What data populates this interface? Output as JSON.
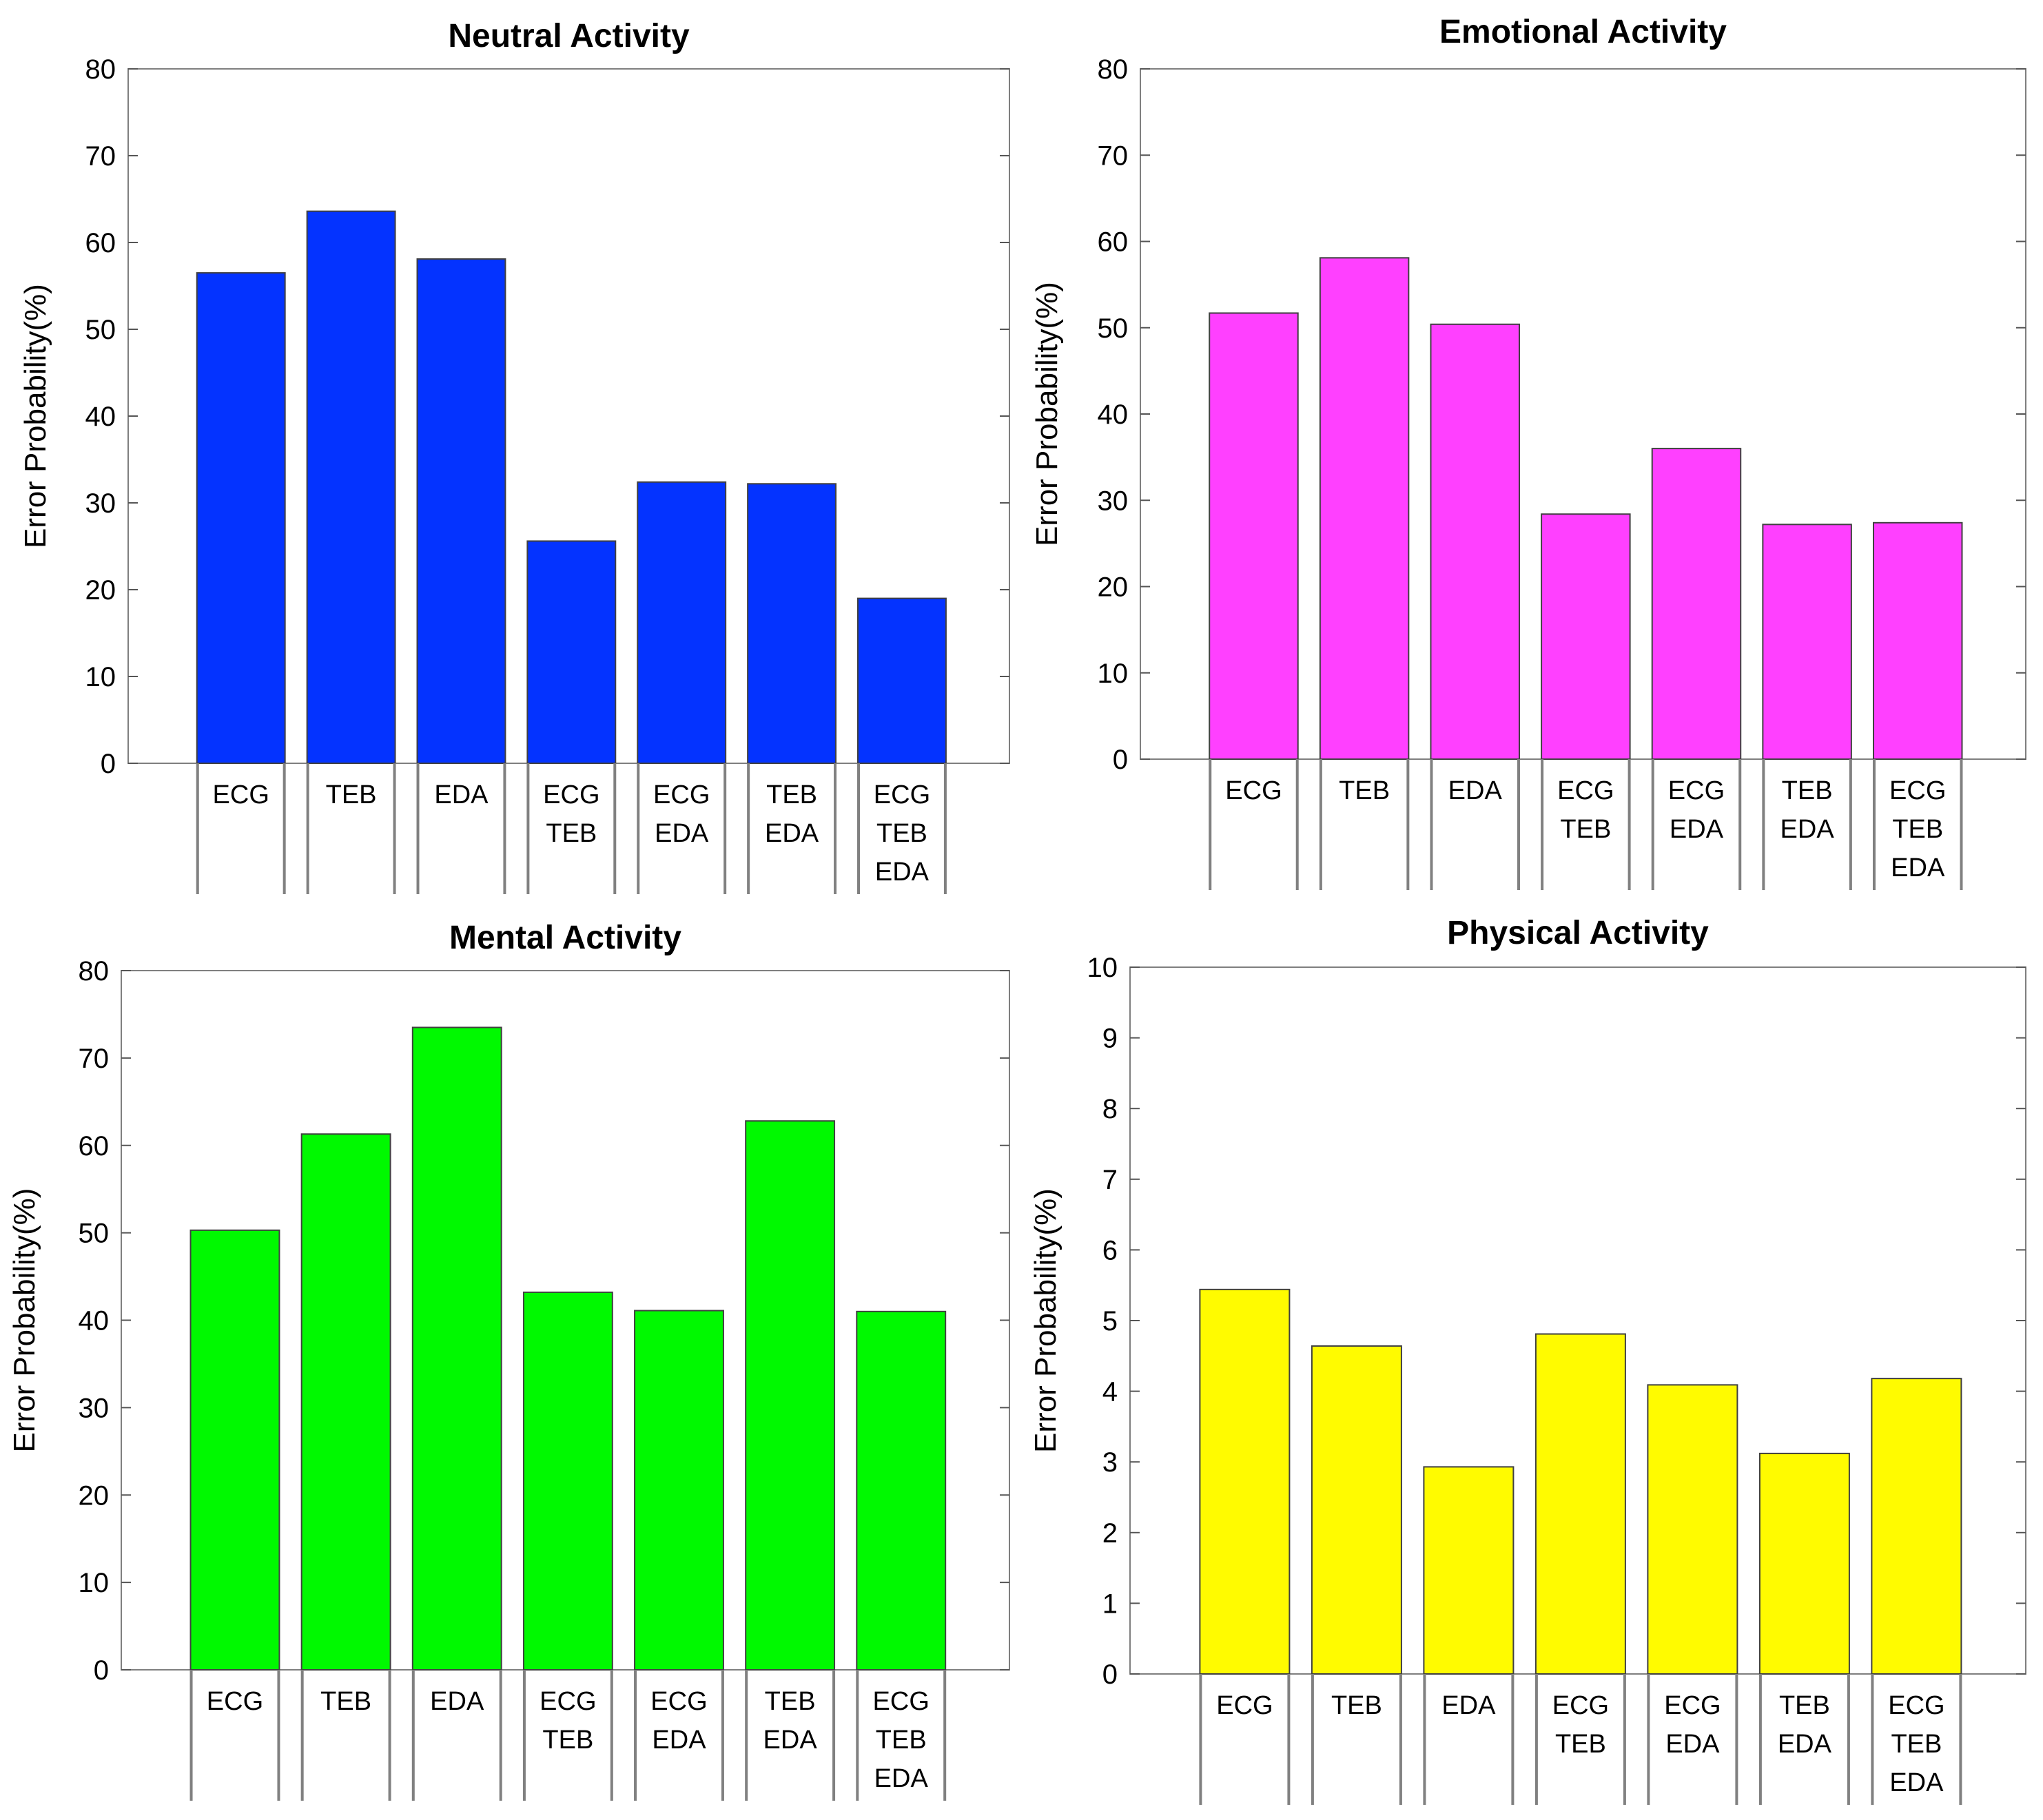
{
  "chart_data": [
    {
      "type": "bar",
      "title": "Neutral Activity",
      "ylabel": "Error Probability(%)",
      "xlabel": "",
      "ylim": [
        0,
        80
      ],
      "yticks": [
        0,
        10,
        20,
        30,
        40,
        50,
        60,
        70,
        80
      ],
      "categories": [
        [
          "ECG"
        ],
        [
          "TEB"
        ],
        [
          "EDA"
        ],
        [
          "ECG",
          "TEB"
        ],
        [
          "ECG",
          "EDA"
        ],
        [
          "TEB",
          "EDA"
        ],
        [
          "ECG",
          "TEB",
          "EDA"
        ]
      ],
      "values": [
        56.5,
        63.6,
        58.1,
        25.6,
        32.4,
        32.2,
        19.0
      ],
      "color": "#0433ff"
    },
    {
      "type": "bar",
      "title": "Emotional Activity",
      "ylabel": "Error Probability(%)",
      "xlabel": "",
      "ylim": [
        0,
        80
      ],
      "yticks": [
        0,
        10,
        20,
        30,
        40,
        50,
        60,
        70,
        80
      ],
      "categories": [
        [
          "ECG"
        ],
        [
          "TEB"
        ],
        [
          "EDA"
        ],
        [
          "ECG",
          "TEB"
        ],
        [
          "ECG",
          "EDA"
        ],
        [
          "TEB",
          "EDA"
        ],
        [
          "ECG",
          "TEB",
          "EDA"
        ]
      ],
      "values": [
        51.7,
        58.1,
        50.4,
        28.4,
        36.0,
        27.2,
        27.4
      ],
      "color": "#ff40ff"
    },
    {
      "type": "bar",
      "title": "Mental Activity",
      "ylabel": "Error Probability(%)",
      "xlabel": "",
      "ylim": [
        0,
        80
      ],
      "yticks": [
        0,
        10,
        20,
        30,
        40,
        50,
        60,
        70,
        80
      ],
      "categories": [
        [
          "ECG"
        ],
        [
          "TEB"
        ],
        [
          "EDA"
        ],
        [
          "ECG",
          "TEB"
        ],
        [
          "ECG",
          "EDA"
        ],
        [
          "TEB",
          "EDA"
        ],
        [
          "ECG",
          "TEB",
          "EDA"
        ]
      ],
      "values": [
        50.3,
        61.3,
        73.5,
        43.2,
        41.1,
        62.8,
        41.0
      ],
      "color": "#00f900"
    },
    {
      "type": "bar",
      "title": "Physical Activity",
      "ylabel": "Error Probability(%)",
      "xlabel": "",
      "ylim": [
        0,
        10
      ],
      "yticks": [
        0,
        1,
        2,
        3,
        4,
        5,
        6,
        7,
        8,
        9,
        10
      ],
      "categories": [
        [
          "ECG"
        ],
        [
          "TEB"
        ],
        [
          "EDA"
        ],
        [
          "ECG",
          "TEB"
        ],
        [
          "ECG",
          "EDA"
        ],
        [
          "TEB",
          "EDA"
        ],
        [
          "ECG",
          "TEB",
          "EDA"
        ]
      ],
      "values": [
        5.44,
        4.64,
        2.93,
        4.81,
        4.09,
        3.12,
        4.18
      ],
      "color": "#fffb00"
    }
  ]
}
